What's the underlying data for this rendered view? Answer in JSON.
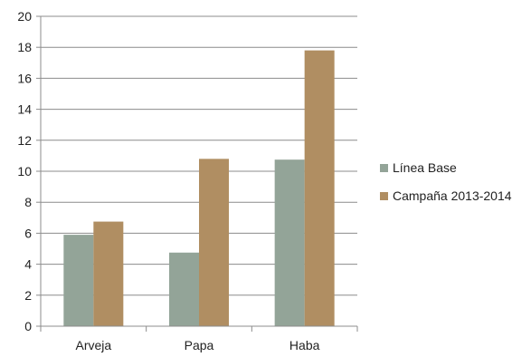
{
  "chart_data": {
    "type": "bar",
    "title": "",
    "xlabel": "",
    "ylabel": "",
    "categories": [
      "Arveja",
      "Papa",
      "Haba"
    ],
    "series": [
      {
        "name": "Línea Base",
        "values": [
          5.9,
          4.75,
          10.75
        ],
        "color": "#93a498"
      },
      {
        "name": "Campaña 2013-2014",
        "values": [
          6.75,
          10.8,
          17.8
        ],
        "color": "#b08e62"
      }
    ],
    "ylim": [
      0,
      20
    ],
    "yticks": [
      0,
      2,
      4,
      6,
      8,
      10,
      12,
      14,
      16,
      18,
      20
    ],
    "grid": true,
    "legend_position": "right"
  }
}
